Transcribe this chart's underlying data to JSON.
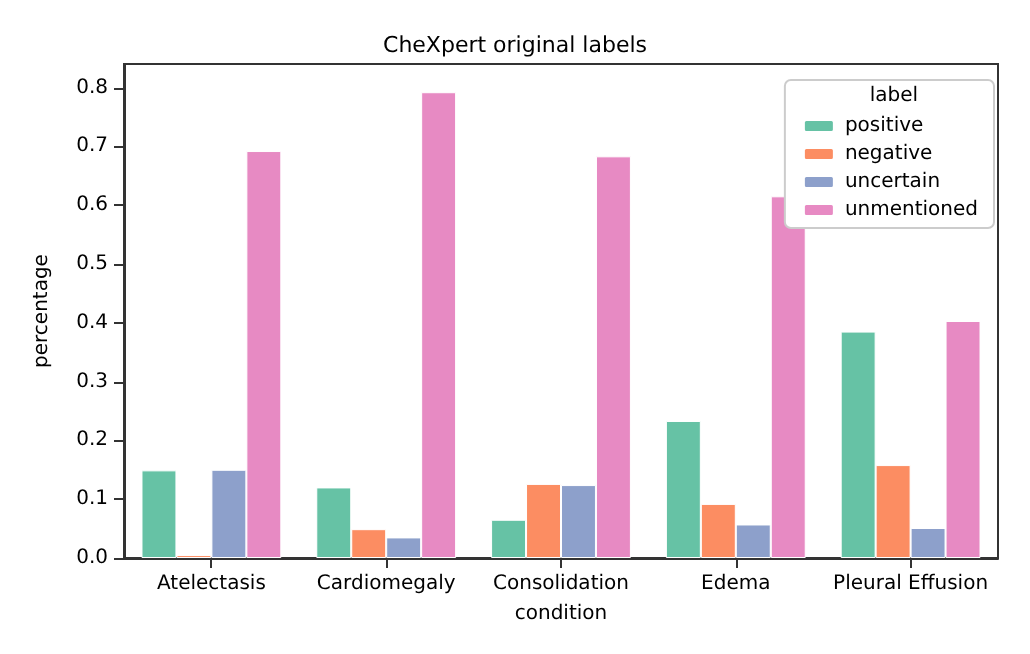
{
  "chart_data": {
    "type": "bar",
    "title": "CheXpert original labels",
    "xlabel": "condition",
    "ylabel": "percentage",
    "legend_title": "label",
    "categories": [
      "Atelectasis",
      "Cardiomegaly",
      "Consolidation",
      "Edema",
      "Pleural Effusion"
    ],
    "series": [
      {
        "name": "positive",
        "color": "#66c2a5",
        "values": [
          0.149,
          0.12,
          0.065,
          0.233,
          0.385
        ]
      },
      {
        "name": "negative",
        "color": "#fc8d62",
        "values": [
          0.005,
          0.049,
          0.126,
          0.092,
          0.158
        ]
      },
      {
        "name": "uncertain",
        "color": "#8da0cb",
        "values": [
          0.15,
          0.035,
          0.124,
          0.057,
          0.051
        ]
      },
      {
        "name": "unmentioned",
        "color": "#e78ac3",
        "values": [
          0.692,
          0.792,
          0.683,
          0.615,
          0.403
        ]
      }
    ],
    "ylim": [
      0,
      0.84
    ],
    "yticks": [
      {
        "value": 0,
        "label": "0.0"
      },
      0.1,
      0.2,
      0.3,
      0.4,
      0.5,
      0.6,
      0.7,
      0.8
    ],
    "grid": false,
    "legend": "top right"
  }
}
